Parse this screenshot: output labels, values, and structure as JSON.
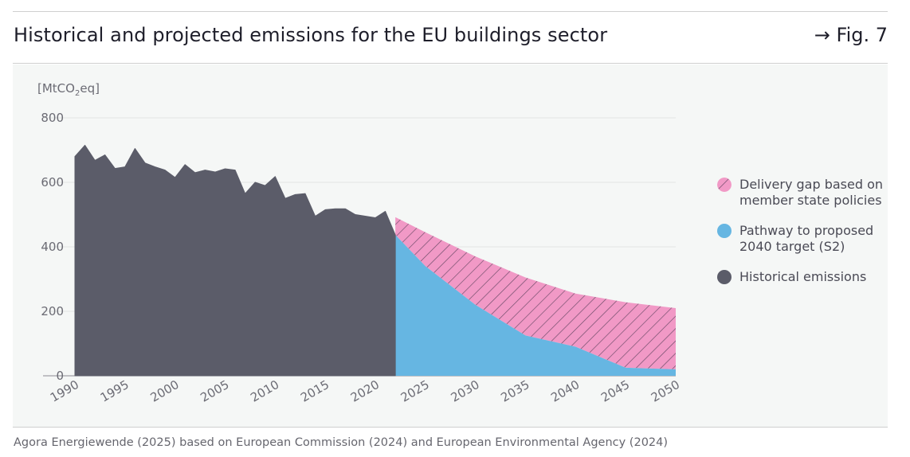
{
  "header": {
    "title": "Historical and projected emissions for the EU buildings sector",
    "figure_ref": "→ Fig. 7"
  },
  "source": "Agora Energiewende (2025) based on European Commission (2024) and European Environmental Agency (2024)",
  "colors": {
    "historical": "#5b5c69",
    "pathway": "#66b6e2",
    "gap": "#f199c6",
    "gap_hatch": "#6a4a66",
    "grid": "#e3e6e4",
    "axis": "#8a8a92"
  },
  "chart_data": {
    "type": "area",
    "title": "Historical and projected emissions for the EU buildings sector",
    "ylabel": "[MtCO2eq]",
    "ylabel_main": "[MtCO",
    "ylabel_sub": "2",
    "ylabel_tail": "eq]",
    "xlabel": "",
    "xlim": [
      1990,
      2050
    ],
    "ylim": [
      0,
      800
    ],
    "y_ticks": [
      0,
      200,
      400,
      600,
      800
    ],
    "x_ticks": [
      1990,
      1995,
      2000,
      2005,
      2010,
      2015,
      2020,
      2025,
      2030,
      2035,
      2040,
      2045,
      2050
    ],
    "legend_position": "right",
    "series": [
      {
        "key": "historical",
        "name": "Historical emissions",
        "x": [
          1990,
          1991,
          1992,
          1993,
          1994,
          1995,
          1996,
          1997,
          1998,
          1999,
          2000,
          2001,
          2002,
          2003,
          2004,
          2005,
          2006,
          2007,
          2008,
          2009,
          2010,
          2011,
          2012,
          2013,
          2014,
          2015,
          2016,
          2017,
          2018,
          2019,
          2020,
          2021,
          2022
        ],
        "values": [
          680,
          715,
          668,
          685,
          643,
          648,
          705,
          660,
          648,
          638,
          615,
          655,
          630,
          638,
          632,
          642,
          638,
          565,
          600,
          590,
          618,
          550,
          562,
          565,
          495,
          515,
          518,
          518,
          500,
          495,
          490,
          510,
          437
        ]
      },
      {
        "key": "pathway",
        "name": "Pathway to proposed 2040 target (S2)",
        "x": [
          2022,
          2025,
          2030,
          2035,
          2040,
          2045,
          2050
        ],
        "values": [
          437,
          340,
          220,
          125,
          90,
          25,
          20
        ]
      },
      {
        "key": "gap",
        "name": "Delivery gap based on member state policies",
        "x": [
          2022,
          2025,
          2030,
          2035,
          2040,
          2045,
          2050
        ],
        "values": [
          492,
          445,
          370,
          305,
          255,
          228,
          210
        ]
      }
    ]
  },
  "legend": [
    {
      "key": "gap",
      "label": "Delivery gap based on member state policies"
    },
    {
      "key": "pathway",
      "label": "Pathway to proposed 2040 target (S2)"
    },
    {
      "key": "historical",
      "label": "Historical emissions"
    }
  ]
}
